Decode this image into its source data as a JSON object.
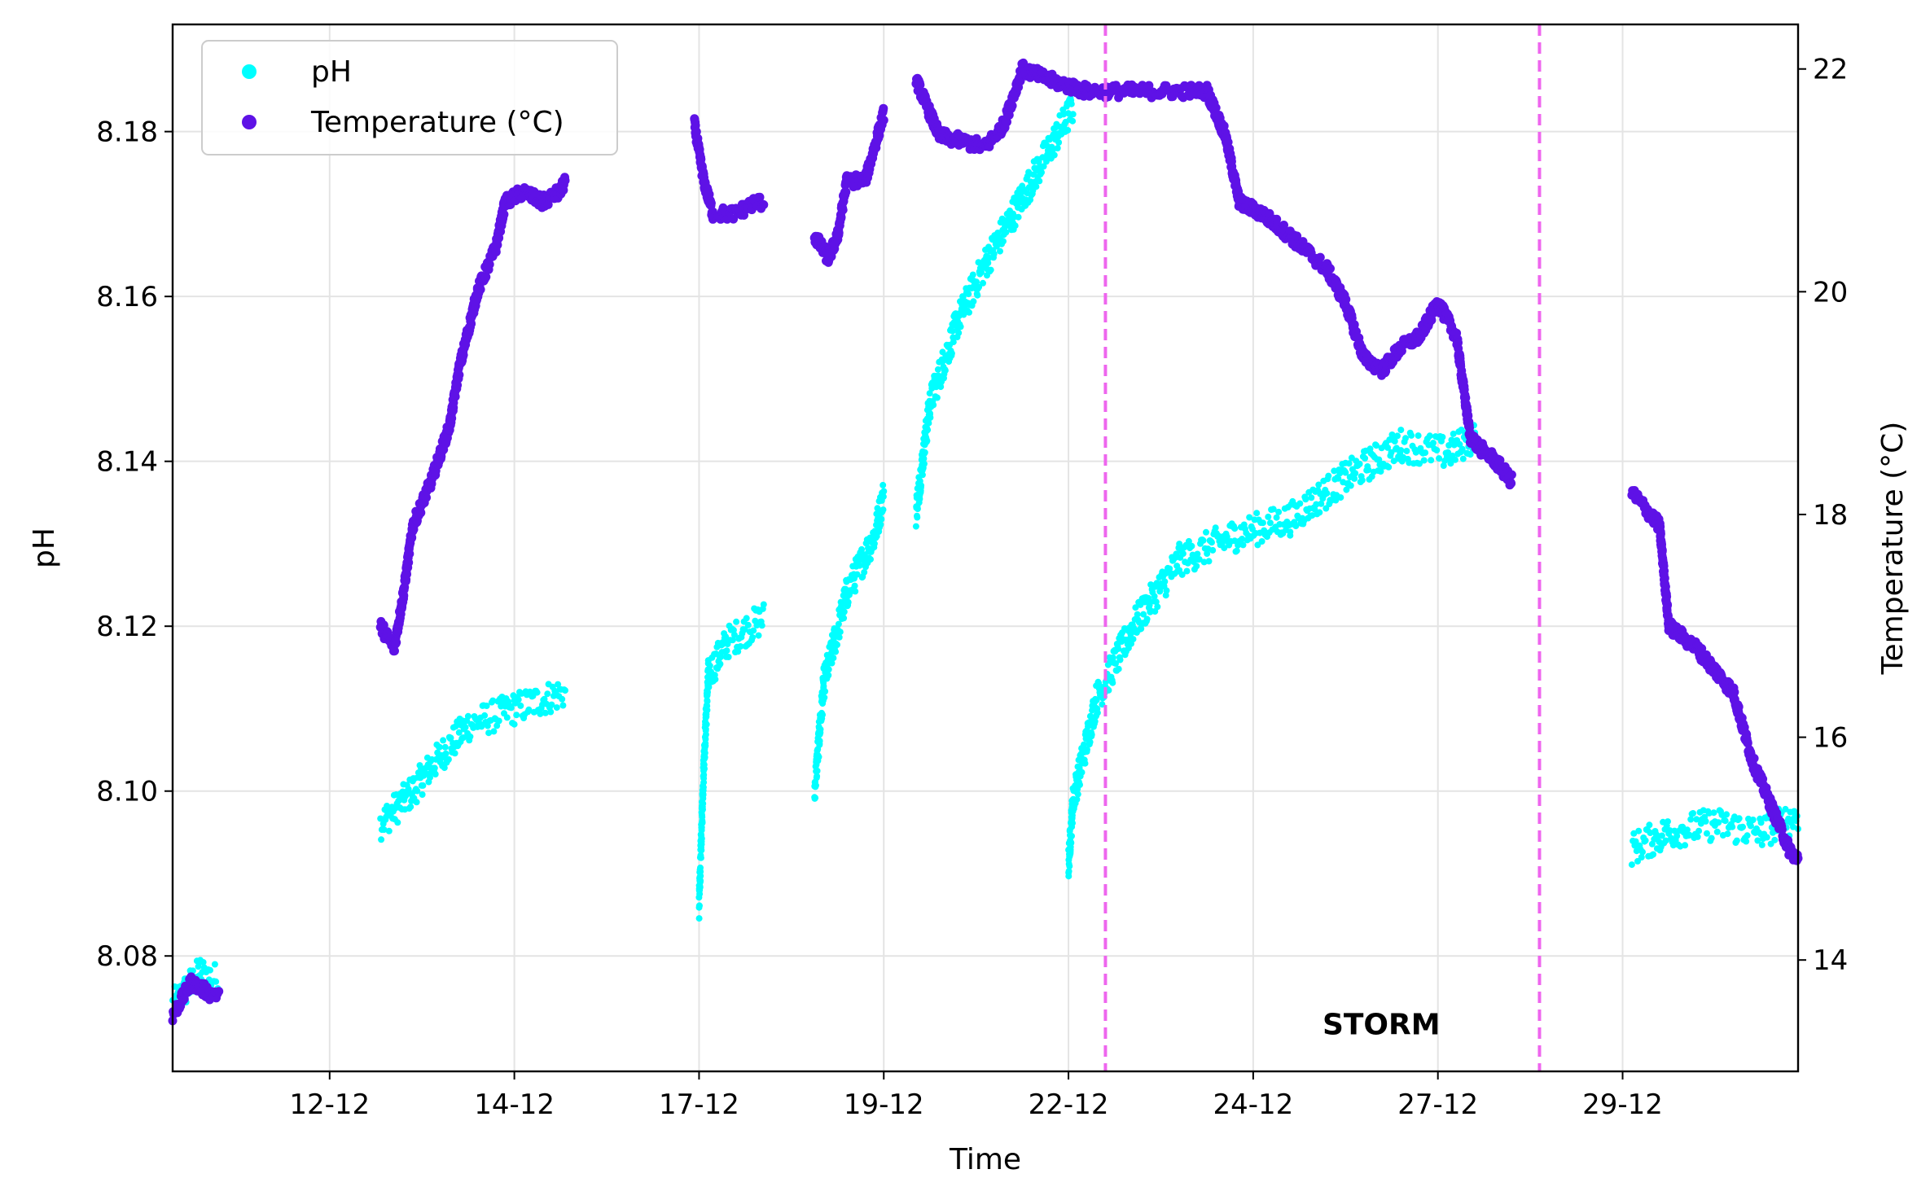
{
  "chart_data": {
    "type": "scatter",
    "xlabel": "Time",
    "ylabel_left": "pH",
    "ylabel_right": "Temperature (°C)",
    "x_ticks": [
      "12-12",
      "14-12",
      "17-12",
      "19-12",
      "22-12",
      "24-12",
      "27-12",
      "29-12"
    ],
    "x_tick_days": [
      12,
      14,
      16,
      18,
      20,
      22,
      24,
      26
    ],
    "xlim_days": [
      10.3,
      27.9
    ],
    "y_left_ticks": [
      "8.08",
      "8.10",
      "8.12",
      "8.14",
      "8.16",
      "8.18"
    ],
    "y_left_tick_values": [
      8.08,
      8.1,
      8.12,
      8.14,
      8.16,
      8.18
    ],
    "ylim_left": [
      8.066,
      8.193
    ],
    "y_right_ticks": [
      "14",
      "16",
      "18",
      "20",
      "22"
    ],
    "y_right_tick_values": [
      14,
      16,
      18,
      20,
      22
    ],
    "ylim_right": [
      13.0,
      22.4
    ],
    "grid": true,
    "legend_position": "top-left",
    "series": [
      {
        "name": "pH",
        "axis": "left",
        "color": "#00FFFF",
        "jitter": 0.002,
        "segments": [
          [
            [
              10.3,
              8.074
            ],
            [
              10.6,
              8.078
            ],
            [
              10.8,
              8.077
            ]
          ],
          [
            [
              12.55,
              8.096
            ],
            [
              12.9,
              8.1
            ],
            [
              13.1,
              8.103
            ],
            [
              13.5,
              8.108
            ],
            [
              14.0,
              8.11
            ],
            [
              14.55,
              8.112
            ]
          ],
          [
            [
              16.0,
              8.086
            ],
            [
              16.05,
              8.103
            ],
            [
              16.1,
              8.114
            ],
            [
              16.3,
              8.118
            ],
            [
              16.7,
              8.121
            ]
          ],
          [
            [
              17.25,
              8.1
            ],
            [
              17.35,
              8.113
            ],
            [
              17.6,
              8.124
            ],
            [
              17.9,
              8.131
            ],
            [
              18.0,
              8.136
            ]
          ],
          [
            [
              18.35,
              8.134
            ],
            [
              18.5,
              8.147
            ],
            [
              18.8,
              8.157
            ],
            [
              19.1,
              8.164
            ],
            [
              19.4,
              8.17
            ],
            [
              19.9,
              8.18
            ],
            [
              20.05,
              8.183
            ]
          ],
          [
            [
              20.0,
              8.091
            ],
            [
              20.05,
              8.099
            ],
            [
              20.3,
              8.111
            ],
            [
              20.7,
              8.12
            ],
            [
              21.2,
              8.128
            ],
            [
              21.8,
              8.131
            ],
            [
              22.4,
              8.133
            ],
            [
              23.0,
              8.138
            ],
            [
              23.6,
              8.142
            ],
            [
              24.1,
              8.141
            ],
            [
              24.4,
              8.143
            ]
          ],
          [
            [
              26.1,
              8.093
            ],
            [
              26.5,
              8.095
            ],
            [
              27.0,
              8.096
            ],
            [
              27.5,
              8.095
            ],
            [
              27.9,
              8.097
            ]
          ]
        ]
      },
      {
        "name": "Temperature (°C)",
        "axis": "right",
        "color": "#5E12E6",
        "jitter": 0.0,
        "segments": [
          [
            [
              10.3,
              13.5
            ],
            [
              10.5,
              13.8
            ],
            [
              10.7,
              13.7
            ],
            [
              10.8,
              13.7
            ]
          ],
          [
            [
              12.55,
              17.0
            ],
            [
              12.7,
              16.8
            ],
            [
              12.8,
              17.3
            ],
            [
              12.9,
              17.9
            ],
            [
              13.1,
              18.3
            ],
            [
              13.3,
              18.8
            ],
            [
              13.4,
              19.3
            ],
            [
              13.6,
              20.0
            ],
            [
              13.8,
              20.4
            ],
            [
              13.9,
              20.8
            ],
            [
              14.1,
              20.9
            ],
            [
              14.3,
              20.8
            ],
            [
              14.5,
              20.9
            ],
            [
              14.55,
              21.0
            ]
          ],
          [
            [
              15.95,
              21.5
            ],
            [
              16.05,
              21.0
            ],
            [
              16.15,
              20.7
            ],
            [
              16.4,
              20.7
            ],
            [
              16.6,
              20.8
            ],
            [
              16.7,
              20.8
            ]
          ],
          [
            [
              17.25,
              20.5
            ],
            [
              17.4,
              20.3
            ],
            [
              17.5,
              20.5
            ],
            [
              17.6,
              21.0
            ],
            [
              17.8,
              21.0
            ],
            [
              18.0,
              21.6
            ]
          ],
          [
            [
              18.35,
              21.9
            ],
            [
              18.6,
              21.4
            ],
            [
              19.1,
              21.3
            ],
            [
              19.3,
              21.5
            ],
            [
              19.5,
              22.0
            ],
            [
              19.8,
              21.9
            ],
            [
              20.2,
              21.8
            ],
            [
              20.6,
              21.8
            ],
            [
              21.0,
              21.8
            ],
            [
              21.5,
              21.8
            ],
            [
              21.7,
              21.4
            ],
            [
              21.85,
              20.8
            ],
            [
              22.1,
              20.7
            ],
            [
              22.4,
              20.5
            ],
            [
              22.8,
              20.2
            ],
            [
              23.0,
              19.9
            ],
            [
              23.2,
              19.4
            ],
            [
              23.4,
              19.3
            ],
            [
              23.6,
              19.5
            ],
            [
              23.8,
              19.6
            ],
            [
              24.0,
              19.9
            ],
            [
              24.2,
              19.6
            ],
            [
              24.35,
              18.7
            ],
            [
              24.45,
              18.6
            ],
            [
              24.6,
              18.5
            ],
            [
              24.8,
              18.3
            ]
          ],
          [
            [
              26.1,
              18.2
            ],
            [
              26.4,
              17.9
            ],
            [
              26.5,
              17.0
            ],
            [
              26.8,
              16.8
            ],
            [
              27.0,
              16.6
            ],
            [
              27.2,
              16.4
            ],
            [
              27.4,
              15.8
            ],
            [
              27.6,
              15.4
            ],
            [
              27.8,
              15.0
            ],
            [
              27.9,
              14.9
            ]
          ]
        ]
      }
    ],
    "event_lines_days": [
      20.4,
      25.1
    ],
    "event_line_color": "#EE66EE",
    "annotation": {
      "text": "STORM",
      "x_day": 22.75,
      "y_ph": 8.0705
    }
  }
}
